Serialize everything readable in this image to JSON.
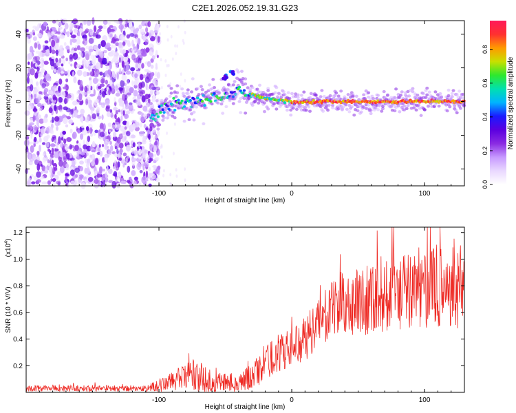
{
  "title": "C2E1.2026.052.19.31.G23",
  "chart_data": [
    {
      "type": "heatmap",
      "title": "C2E1.2026.052.19.31.G23",
      "xlabel": "Height of straight line (km)",
      "ylabel": "Frequency (Hz)",
      "xlim": [
        -200,
        130
      ],
      "ylim": [
        -50,
        48
      ],
      "xticks": [
        -100,
        0,
        100
      ],
      "yticks": [
        -40,
        -20,
        0,
        20,
        40
      ],
      "colorbar": {
        "label": "Normalized spectral amplitude",
        "range": [
          0,
          0.97
        ],
        "ticks": [
          0.0,
          0.2,
          0.4,
          0.6,
          0.8
        ],
        "tick_labels": [
          "0.0",
          "0.2",
          "0.4",
          "0.6",
          "0.8"
        ],
        "colormap": [
          "#ffffff",
          "#e9d8ff",
          "#c79aff",
          "#8a2be2",
          "#5b00e0",
          "#1a1aff",
          "#00b4ff",
          "#00e0b0",
          "#2ee82e",
          "#c8e000",
          "#ff9a00",
          "#ff3030",
          "#ff1a5a"
        ]
      },
      "ridge": {
        "description_points": [
          {
            "x": -104,
            "y": -8
          },
          {
            "x": -95,
            "y": -3
          },
          {
            "x": -80,
            "y": 0
          },
          {
            "x": -60,
            "y": 2
          },
          {
            "x": -45,
            "y": 5
          },
          {
            "x": -38,
            "y": 6
          },
          {
            "x": -30,
            "y": 4
          },
          {
            "x": -20,
            "y": 2
          },
          {
            "x": -10,
            "y": 1
          },
          {
            "x": 0,
            "y": 0
          },
          {
            "x": 130,
            "y": 0
          }
        ],
        "branch_points": [
          {
            "x": -50,
            "y": 14
          },
          {
            "x": -45,
            "y": 17
          }
        ]
      }
    },
    {
      "type": "line",
      "xlabel": "Height of straight line (km)",
      "ylabel": "SNR (10 * V/V)",
      "multiplier_label": "(x10",
      "multiplier_exp": "4",
      "xlim": [
        -200,
        130
      ],
      "ylim": [
        0,
        1.24
      ],
      "xticks": [
        -100,
        0,
        100
      ],
      "yticks": [
        0.2,
        0.4,
        0.6,
        0.8,
        1.0,
        1.2
      ],
      "ytick_labels": [
        "0.2",
        "0.4",
        "0.6",
        "0.8",
        "1.0",
        "1.2"
      ],
      "color": "#ee2a24",
      "envelope": [
        {
          "x": -200,
          "y": 0.03
        },
        {
          "x": -110,
          "y": 0.03
        },
        {
          "x": -100,
          "y": 0.05
        },
        {
          "x": -85,
          "y": 0.1
        },
        {
          "x": -75,
          "y": 0.13
        },
        {
          "x": -65,
          "y": 0.08
        },
        {
          "x": -40,
          "y": 0.07
        },
        {
          "x": -30,
          "y": 0.12
        },
        {
          "x": -20,
          "y": 0.22
        },
        {
          "x": -10,
          "y": 0.3
        },
        {
          "x": 0,
          "y": 0.33
        },
        {
          "x": 10,
          "y": 0.4
        },
        {
          "x": 20,
          "y": 0.52
        },
        {
          "x": 30,
          "y": 0.62
        },
        {
          "x": 45,
          "y": 0.67
        },
        {
          "x": 60,
          "y": 0.72
        },
        {
          "x": 80,
          "y": 0.75
        },
        {
          "x": 100,
          "y": 0.77
        },
        {
          "x": 130,
          "y": 0.8
        }
      ],
      "noise_amplitude": [
        {
          "x": -200,
          "y": 0.015
        },
        {
          "x": -110,
          "y": 0.015
        },
        {
          "x": -100,
          "y": 0.03
        },
        {
          "x": -75,
          "y": 0.07
        },
        {
          "x": -40,
          "y": 0.04
        },
        {
          "x": -20,
          "y": 0.09
        },
        {
          "x": 0,
          "y": 0.09
        },
        {
          "x": 30,
          "y": 0.13
        },
        {
          "x": 60,
          "y": 0.18
        },
        {
          "x": 130,
          "y": 0.2
        }
      ]
    }
  ]
}
